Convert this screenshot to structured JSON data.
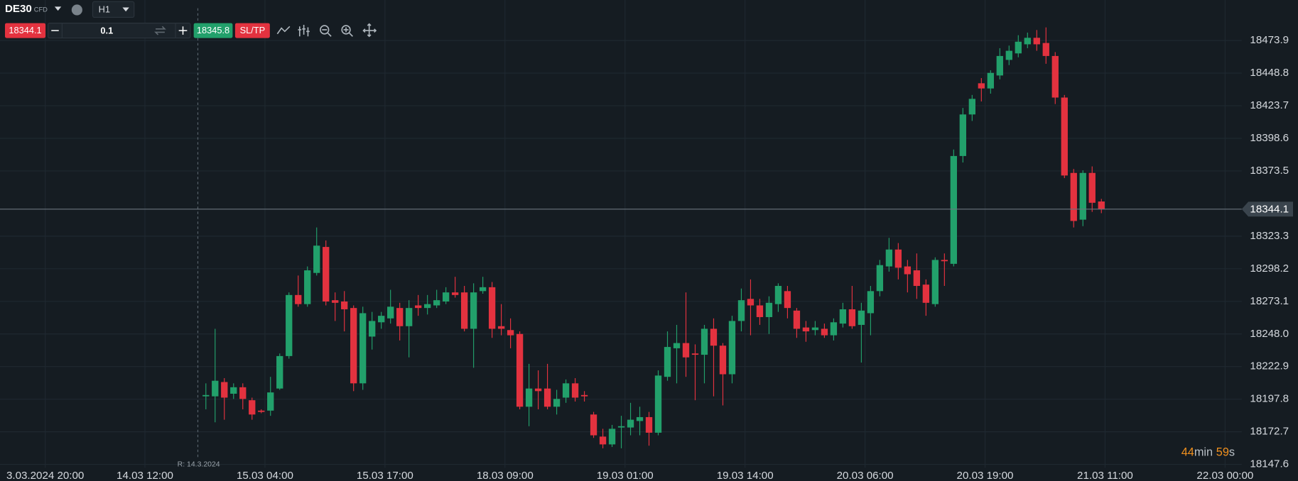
{
  "toolbar": {
    "symbol": "DE30",
    "symbol_type": "CFD",
    "timeframe": "H1",
    "sell_price": "18344.1",
    "volume": "0.1",
    "buy_price": "18345.8",
    "sltp": "SL/TP"
  },
  "chart_data": {
    "type": "candlestick",
    "open": [
      18200,
      18200,
      18211,
      18202,
      18207,
      18197,
      18189,
      18189,
      18206,
      18231,
      18278,
      18271,
      18295,
      18315,
      18274,
      18273,
      18268,
      18210,
      18246,
      18257,
      18260,
      18268,
      18254,
      18270,
      18268,
      18270,
      18273,
      18280,
      18280,
      18252,
      18281,
      18284,
      18254,
      18251,
      18248,
      18192,
      18206,
      18206,
      18192,
      18199,
      18210,
      18201,
      18186,
      18169,
      18163,
      18176,
      18176,
      18181,
      18184,
      18172,
      18215,
      18237,
      18241,
      18233,
      18232,
      18252,
      18239,
      18217,
      18258,
      18275,
      18270,
      18261,
      18271,
      18281,
      18266,
      18253,
      18251,
      18252,
      18247,
      18256,
      18267,
      18255,
      18264,
      18281,
      18300,
      18313,
      18300,
      18297,
      18286,
      18271,
      18305,
      18302,
      18385,
      18417,
      18441,
      18437,
      18447,
      18459,
      18464,
      18471,
      18476,
      18472,
      18462,
      18430,
      18372,
      18336,
      18372,
      18350
    ],
    "high": [
      18210,
      18252,
      18214,
      18210,
      18210,
      18199,
      18190,
      18215,
      18233,
      18280,
      18293,
      18300,
      18330,
      18320,
      18280,
      18281,
      18270,
      18269,
      18265,
      18265,
      18282,
      18272,
      18274,
      18278,
      18278,
      18282,
      18284,
      18292,
      18285,
      18287,
      18292,
      18288,
      18271,
      18260,
      18250,
      18225,
      18220,
      18225,
      18205,
      18213,
      18214,
      18204,
      18188,
      18175,
      18178,
      18185,
      18195,
      18192,
      18188,
      18220,
      18250,
      18255,
      18280,
      18240,
      18255,
      18260,
      18241,
      18262,
      18283,
      18290,
      18275,
      18277,
      18287,
      18285,
      18268,
      18258,
      18258,
      18256,
      18260,
      18272,
      18285,
      18272,
      18285,
      18305,
      18322,
      18318,
      18305,
      18310,
      18290,
      18307,
      18310,
      18390,
      18422,
      18432,
      18445,
      18451,
      18468,
      18470,
      18478,
      18480,
      18482,
      18484,
      18465,
      18432,
      18375,
      18374,
      18377,
      18352
    ],
    "low": [
      18190,
      18180,
      18182,
      18198,
      18190,
      18182,
      18187,
      18185,
      18205,
      18229,
      18269,
      18269,
      18293,
      18270,
      18258,
      18250,
      18204,
      18205,
      18236,
      18252,
      18256,
      18243,
      18230,
      18262,
      18263,
      18268,
      18271,
      18276,
      18250,
      18222,
      18279,
      18245,
      18247,
      18237,
      18190,
      18177,
      18190,
      18190,
      18186,
      18195,
      18196,
      18196,
      18168,
      18160,
      18161,
      18160,
      18170,
      18170,
      18162,
      18170,
      18212,
      18210,
      18215,
      18197,
      18210,
      18200,
      18193,
      18210,
      18250,
      18247,
      18255,
      18248,
      18265,
      18260,
      18245,
      18242,
      18247,
      18245,
      18243,
      18253,
      18252,
      18226,
      18247,
      18277,
      18296,
      18290,
      18280,
      18275,
      18262,
      18269,
      18285,
      18300,
      18380,
      18412,
      18427,
      18433,
      18444,
      18455,
      18461,
      18468,
      18466,
      18456,
      18425,
      18368,
      18330,
      18331,
      18342,
      18341
    ],
    "close": [
      18201,
      18212,
      18199,
      18207,
      18198,
      18186,
      18188,
      18203,
      18231,
      18278,
      18271,
      18297,
      18316,
      18273,
      18272,
      18267,
      18210,
      18264,
      18258,
      18262,
      18269,
      18254,
      18268,
      18268,
      18271,
      18274,
      18280,
      18278,
      18252,
      18280,
      18284,
      18252,
      18252,
      18247,
      18192,
      18206,
      18204,
      18192,
      18198,
      18210,
      18199,
      18200,
      18170,
      18163,
      18175,
      18177,
      18182,
      18184,
      18172,
      18216,
      18238,
      18241,
      18230,
      18232,
      18252,
      18239,
      18217,
      18258,
      18274,
      18270,
      18261,
      18272,
      18285,
      18268,
      18252,
      18250,
      18253,
      18247,
      18257,
      18267,
      18254,
      18266,
      18281,
      18301,
      18313,
      18299,
      18294,
      18285,
      18272,
      18305,
      18304,
      18385,
      18417,
      18429,
      18437,
      18449,
      18462,
      18466,
      18473,
      18476,
      18471,
      18462,
      18430,
      18370,
      18335,
      18372,
      18349,
      18344.1
    ],
    "up_color": "#22a06b",
    "down_color": "#e3323f",
    "xlim": [
      -22.3,
      112.2
    ],
    "ylim": [
      18145.0,
      18505.1
    ],
    "xticks": [
      {
        "value": -17.4,
        "label": "3.03.2024 20:00"
      },
      {
        "value": -6.6,
        "label": "14.03 12:00"
      },
      {
        "value": 6.4,
        "label": "15.03 04:00"
      },
      {
        "value": 19.4,
        "label": "15.03 17:00"
      },
      {
        "value": 32.4,
        "label": "18.03 09:00"
      },
      {
        "value": 45.4,
        "label": "19.03 01:00"
      },
      {
        "value": 58.4,
        "label": "19.03 14:00"
      },
      {
        "value": 71.4,
        "label": "20.03 06:00"
      },
      {
        "value": 84.4,
        "label": "20.03 19:00"
      },
      {
        "value": 97.4,
        "label": "21.03 11:00"
      },
      {
        "value": 110.4,
        "label": "22.03 00:00"
      }
    ],
    "yticks": [
      18473.9,
      18448.8,
      18423.7,
      18398.6,
      18373.5,
      18323.3,
      18298.2,
      18273.1,
      {
        "value": 18248,
        "label": "18248.0"
      },
      18222.9,
      18197.8,
      18172.7,
      18147.6
    ],
    "grid": true,
    "current_price": 18344.1,
    "marker_label": "R: 14.3.2024"
  },
  "countdown": {
    "minutes": "44",
    "minutes_unit": "min",
    "seconds": "59",
    "seconds_unit": "s"
  }
}
